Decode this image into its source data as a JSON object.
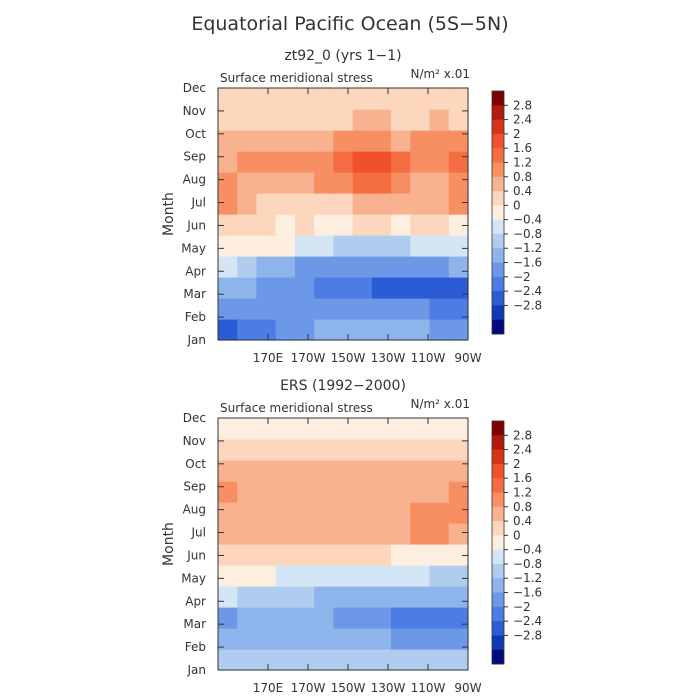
{
  "title": "Equatorial Pacific Ocean (5S−5N)",
  "chart_data": [
    {
      "type": "heatmap",
      "subtitle": "zt92_0 (yrs 1−1)",
      "panel_label": "Surface meridional stress",
      "units": "N/m² x.01",
      "ylabel": "Month",
      "yticks": [
        "Jan",
        "Feb",
        "Mar",
        "Apr",
        "May",
        "Jun",
        "Jul",
        "Aug",
        "Sep",
        "Oct",
        "Nov",
        "Dec"
      ],
      "xticks": [
        "170E",
        "170W",
        "150W",
        "130W",
        "110W",
        "90W"
      ],
      "colorbar_levels": [
        "2.8",
        "2.4",
        "2",
        "1.6",
        "1.2",
        "0.8",
        "0.4",
        "0",
        "−0.4",
        "−0.8",
        "−1.2",
        "−1.6",
        "−2",
        "−2.4",
        "−2.8"
      ],
      "data": [
        [
          -2.4,
          -2.0,
          -2.0,
          -1.6,
          -1.6,
          -1.2,
          -1.2,
          -1.2,
          -1.2,
          -1.2,
          -1.2,
          -1.6,
          -1.6
        ],
        [
          -1.6,
          -1.6,
          -1.6,
          -1.6,
          -1.6,
          -1.6,
          -1.6,
          -1.6,
          -1.6,
          -1.6,
          -1.6,
          -2.0,
          -2.0
        ],
        [
          -1.2,
          -1.2,
          -1.6,
          -1.6,
          -1.6,
          -2.0,
          -2.0,
          -2.0,
          -2.4,
          -2.4,
          -2.4,
          -2.4,
          -2.4
        ],
        [
          -0.4,
          -0.8,
          -1.2,
          -1.2,
          -1.6,
          -1.6,
          -1.6,
          -1.6,
          -1.6,
          -1.6,
          -1.6,
          -1.6,
          -1.2
        ],
        [
          0.0,
          0.0,
          0.0,
          0.0,
          -0.4,
          -0.4,
          -0.8,
          -0.8,
          -0.8,
          -0.8,
          -0.4,
          -0.4,
          -0.4
        ],
        [
          0.4,
          0.4,
          0.4,
          0.0,
          0.4,
          0.0,
          0.0,
          0.4,
          0.4,
          0.0,
          0.4,
          0.4,
          0.0
        ],
        [
          1.2,
          0.8,
          0.4,
          0.4,
          0.4,
          0.4,
          0.4,
          0.8,
          0.8,
          0.8,
          0.8,
          0.8,
          1.2
        ],
        [
          1.2,
          0.8,
          0.8,
          0.8,
          0.8,
          1.2,
          1.2,
          1.6,
          1.6,
          1.2,
          0.8,
          0.8,
          1.2
        ],
        [
          0.8,
          1.2,
          1.2,
          1.2,
          1.2,
          1.2,
          1.6,
          2.0,
          2.0,
          1.6,
          1.2,
          1.2,
          1.6
        ],
        [
          0.8,
          0.8,
          0.8,
          0.8,
          0.8,
          0.8,
          1.2,
          1.2,
          1.2,
          0.8,
          1.2,
          1.2,
          1.2
        ],
        [
          0.4,
          0.4,
          0.4,
          0.4,
          0.4,
          0.4,
          0.4,
          0.8,
          0.8,
          0.4,
          0.4,
          0.8,
          0.4
        ],
        [
          0.4,
          0.4,
          0.4,
          0.4,
          0.4,
          0.4,
          0.4,
          0.4,
          0.4,
          0.4,
          0.4,
          0.4,
          0.4
        ]
      ]
    },
    {
      "type": "heatmap",
      "subtitle": "ERS (1992−2000)",
      "panel_label": "Surface meridional stress",
      "units": "N/m² x.01",
      "ylabel": "Month",
      "yticks": [
        "Jan",
        "Feb",
        "Mar",
        "Apr",
        "May",
        "Jun",
        "Jul",
        "Aug",
        "Sep",
        "Oct",
        "Nov",
        "Dec"
      ],
      "xticks": [
        "170E",
        "170W",
        "150W",
        "130W",
        "110W",
        "90W"
      ],
      "colorbar_levels": [
        "2.8",
        "2.4",
        "2",
        "1.6",
        "1.2",
        "0.8",
        "0.4",
        "0",
        "−0.4",
        "−0.8",
        "−1.2",
        "−1.6",
        "−2",
        "−2.4",
        "−2.8"
      ],
      "data": [
        [
          -0.8,
          -0.8,
          -0.8,
          -0.8,
          -0.8,
          -0.8,
          -0.8,
          -0.8,
          -0.8,
          -0.8,
          -0.8,
          -0.8,
          -0.8
        ],
        [
          -1.2,
          -1.2,
          -1.2,
          -1.2,
          -1.2,
          -1.2,
          -1.2,
          -1.2,
          -1.2,
          -1.6,
          -1.6,
          -1.6,
          -1.6
        ],
        [
          -1.6,
          -1.2,
          -1.2,
          -1.2,
          -1.2,
          -1.2,
          -1.6,
          -1.6,
          -1.6,
          -2.0,
          -2.0,
          -2.0,
          -2.0
        ],
        [
          -0.4,
          -0.8,
          -0.8,
          -0.8,
          -0.8,
          -1.2,
          -1.2,
          -1.2,
          -1.2,
          -1.2,
          -1.2,
          -1.2,
          -1.2
        ],
        [
          0.0,
          0.0,
          0.0,
          -0.4,
          -0.4,
          -0.4,
          -0.4,
          -0.4,
          -0.4,
          -0.4,
          -0.4,
          -0.8,
          -0.8
        ],
        [
          0.4,
          0.4,
          0.4,
          0.4,
          0.4,
          0.4,
          0.4,
          0.4,
          0.4,
          0.0,
          0.0,
          0.0,
          0.0
        ],
        [
          0.8,
          0.8,
          0.8,
          0.8,
          0.8,
          0.8,
          0.8,
          0.8,
          0.8,
          0.8,
          1.2,
          1.2,
          0.8
        ],
        [
          0.8,
          0.8,
          0.8,
          0.8,
          0.8,
          0.8,
          0.8,
          0.8,
          0.8,
          0.8,
          1.2,
          1.2,
          1.2
        ],
        [
          1.2,
          0.8,
          0.8,
          0.8,
          0.8,
          0.8,
          0.8,
          0.8,
          0.8,
          0.8,
          0.8,
          0.8,
          1.2
        ],
        [
          0.8,
          0.8,
          0.8,
          0.8,
          0.8,
          0.8,
          0.8,
          0.8,
          0.8,
          0.8,
          0.8,
          0.8,
          0.8
        ],
        [
          0.4,
          0.4,
          0.4,
          0.4,
          0.4,
          0.4,
          0.4,
          0.4,
          0.4,
          0.4,
          0.4,
          0.4,
          0.4
        ],
        [
          0.0,
          0.0,
          0.0,
          0.0,
          0.0,
          0.0,
          0.0,
          0.0,
          0.0,
          0.0,
          0.0,
          0.0,
          0.0
        ]
      ]
    }
  ],
  "colors": {
    "palette_high_to_low": [
      "#7f0000",
      "#b21a0b",
      "#d73216",
      "#f0502c",
      "#f56e43",
      "#f78f63",
      "#f9b28f",
      "#fcd6bd",
      "#fdeee0",
      "#d4e6f5",
      "#b0cdf0",
      "#8eb4ec",
      "#6d98e8",
      "#4c7ce4",
      "#2b5cd6",
      "#1039b4",
      "#000c7d"
    ]
  }
}
